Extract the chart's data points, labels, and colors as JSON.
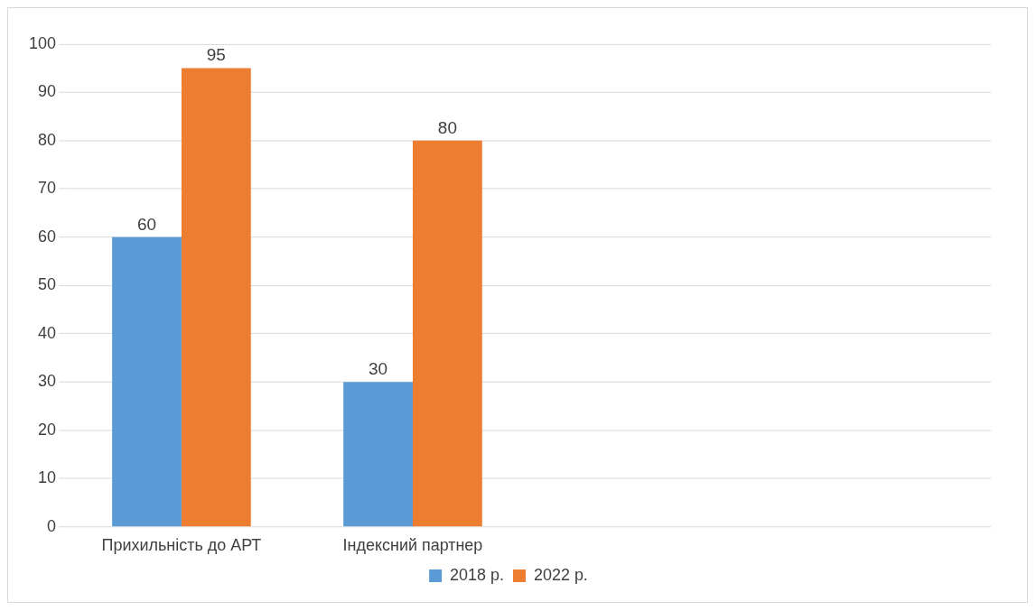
{
  "chart_data": {
    "type": "bar",
    "categories": [
      "Прихильність до АРТ",
      "Індексний партнер",
      null,
      null
    ],
    "series": [
      {
        "name": "2018 р.",
        "color": "#5b9bd5",
        "values": [
          60,
          30,
          null,
          null
        ]
      },
      {
        "name": "2022 р.",
        "color": "#ed7d31",
        "values": [
          95,
          80,
          null,
          null
        ]
      }
    ],
    "ylim": [
      0,
      100
    ],
    "yticks": [
      0,
      10,
      20,
      30,
      40,
      50,
      60,
      70,
      80,
      90,
      100
    ],
    "grid": "y",
    "legend": "bottom",
    "data_labels": true
  }
}
